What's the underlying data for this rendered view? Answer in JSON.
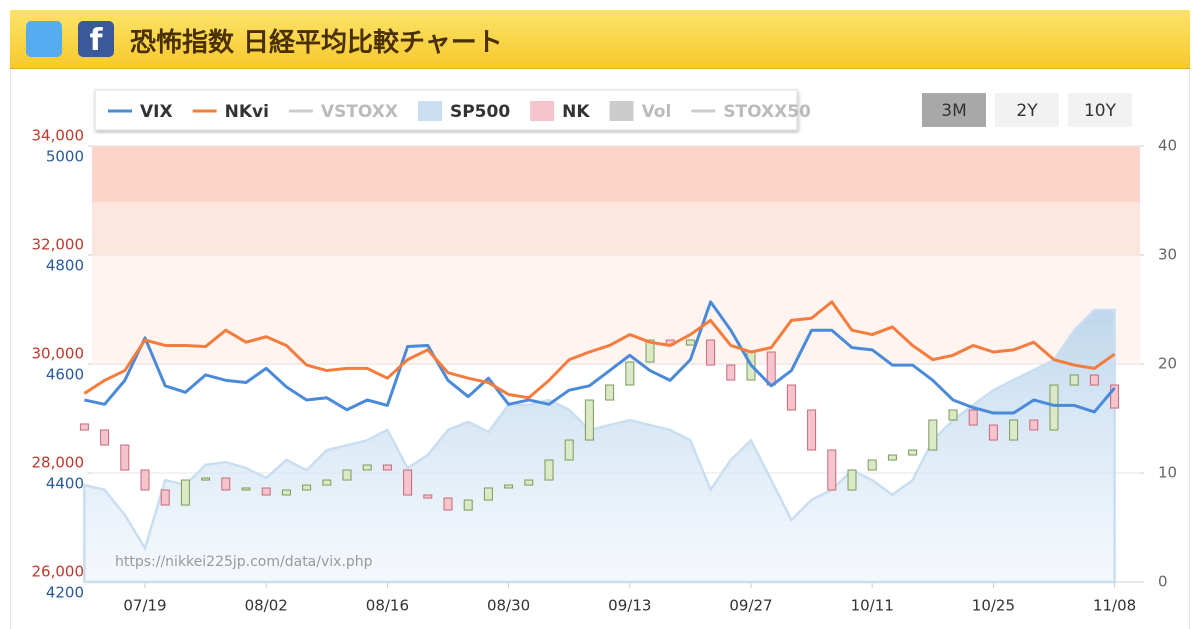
{
  "header": {
    "title": "恐怖指数 日経平均比較チャート"
  },
  "chart_data": {
    "type": "combo",
    "ranges": [
      "3M",
      "2Y",
      "10Y"
    ],
    "selected_range": 0,
    "watermark": "https://nikkei225jp.com/data/vix.php",
    "categories": [
      null,
      null,
      null,
      "07/19",
      null,
      null,
      null,
      null,
      null,
      "08/02",
      null,
      null,
      null,
      null,
      null,
      "08/16",
      null,
      null,
      null,
      null,
      null,
      "08/30",
      null,
      null,
      null,
      null,
      null,
      "09/13",
      null,
      null,
      null,
      null,
      null,
      "09/27",
      null,
      null,
      null,
      null,
      null,
      "10/11",
      null,
      null,
      null,
      null,
      null,
      "10/25",
      null,
      null,
      null,
      null,
      null,
      "11/08"
    ],
    "ylim": [
      26000,
      34000
    ],
    "yticks": [
      {
        "value": 26000,
        "label": "26,000"
      },
      {
        "value": 28000,
        "label": "28,000"
      },
      {
        "value": 30000,
        "label": "30,000"
      },
      {
        "value": 32000,
        "label": "32,000"
      },
      {
        "value": 34000,
        "label": "34,000"
      }
    ],
    "y3lim": [
      4200,
      5000
    ],
    "y3ticks": [
      4200,
      4400,
      4600,
      4800,
      5000
    ],
    "y2lim": [
      0,
      40
    ],
    "y2ticks": [
      0,
      10,
      20,
      30,
      40
    ],
    "series": [
      {
        "name": "VIX",
        "color": "#4a8ad8",
        "kind": "line",
        "axis": "y2",
        "visible": true,
        "values": [
          16.7,
          16.3,
          18.5,
          22.4,
          18,
          17.4,
          19,
          18.5,
          18.3,
          19.6,
          17.9,
          16.7,
          16.9,
          15.8,
          16.7,
          16.2,
          21.6,
          21.7,
          18.5,
          17,
          18.7,
          16.3,
          16.7,
          16.3,
          17.6,
          18,
          19.4,
          20.8,
          19.4,
          18.5,
          20.4,
          25.7,
          23.1,
          19.9,
          18,
          19.4,
          23.1,
          23.1,
          21.5,
          21.3,
          19.9,
          19.9,
          18.5,
          16.7,
          16,
          15.5,
          15.5,
          16.7,
          16.2,
          16.2,
          15.6,
          17.8
        ]
      },
      {
        "name": "NKvi",
        "color": "#f47c3c",
        "kind": "line",
        "axis": "y2",
        "visible": true,
        "values": [
          17.3,
          18.5,
          19.4,
          22.2,
          21.7,
          21.7,
          21.6,
          23.1,
          22,
          22.5,
          21.7,
          19.9,
          19.4,
          19.6,
          19.6,
          18.7,
          20.4,
          21.3,
          19.2,
          18.7,
          18.3,
          17.2,
          16.9,
          18.5,
          20.4,
          21.1,
          21.7,
          22.7,
          22,
          21.7,
          22.7,
          24,
          21.7,
          21.1,
          21.5,
          24,
          24.2,
          25.7,
          23.1,
          22.7,
          23.4,
          21.7,
          20.4,
          20.8,
          21.7,
          21.1,
          21.3,
          22,
          20.4,
          19.9,
          19.6,
          20.9
        ]
      },
      {
        "name": "VSTOXX",
        "color": "#cccccc",
        "kind": "line",
        "visible": false
      },
      {
        "name": "SP500",
        "color": "#c9def0",
        "kind": "area",
        "axis": "y3",
        "visible": true,
        "values": [
          4378,
          4369,
          4323,
          4262,
          4387,
          4378,
          4415,
          4420,
          4409,
          4391,
          4424,
          4405,
          4442,
          4451,
          4460,
          4479,
          4409,
          4433,
          4479,
          4494,
          4475,
          4525,
          4525,
          4534,
          4516,
          4479,
          4488,
          4497,
          4488,
          4479,
          4460,
          4369,
          4424,
          4460,
          4387,
          4314,
          4351,
          4369,
          4405,
          4387,
          4360,
          4387,
          4460,
          4497,
          4525,
          4552,
          4571,
          4589,
          4607,
          4662,
          4699,
          4699
        ]
      },
      {
        "name": "NK",
        "color": "#f6c4cc",
        "kind": "candle",
        "axis": "y",
        "visible": true,
        "open": [
          28900,
          28789,
          28513,
          28055,
          27688,
          27412,
          27871,
          27908,
          27688,
          27725,
          27596,
          27688,
          27779,
          27871,
          28055,
          28147,
          28055,
          27596,
          27541,
          27320,
          27504,
          27725,
          27779,
          27871,
          28238,
          28605,
          29339,
          29614,
          30036,
          30440,
          30348,
          30440,
          29981,
          29706,
          30220,
          29614,
          29156,
          28422,
          27688,
          28055,
          28238,
          28330,
          28422,
          28972,
          29156,
          28880,
          28605,
          28972,
          28789,
          29614,
          29798,
          29614
        ],
        "close": [
          28789,
          28513,
          28055,
          27688,
          27412,
          27871,
          27908,
          27688,
          27725,
          27596,
          27688,
          27779,
          27871,
          28055,
          28147,
          28055,
          27596,
          27541,
          27320,
          27504,
          27725,
          27779,
          27871,
          28238,
          28605,
          29339,
          29614,
          30036,
          30440,
          30348,
          30440,
          29981,
          29706,
          30220,
          29614,
          29156,
          28422,
          27688,
          28055,
          28238,
          28330,
          28422,
          28972,
          29156,
          28880,
          28605,
          28972,
          28789,
          29614,
          29798,
          29614,
          29192
        ]
      },
      {
        "name": "Vol",
        "color": "#cccccc",
        "kind": "bar",
        "visible": false
      },
      {
        "name": "STOXX50",
        "color": "#cccccc",
        "kind": "line",
        "visible": false
      }
    ]
  }
}
